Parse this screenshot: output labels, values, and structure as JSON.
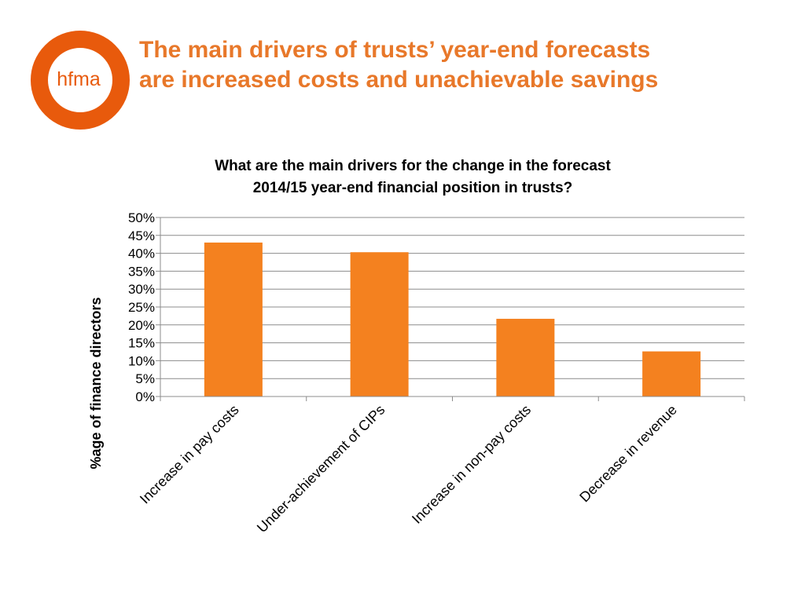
{
  "logo": {
    "text": "hfma",
    "color": "#e85a0c"
  },
  "slide": {
    "title_lines": [
      "The main drivers of trusts’ year-end forecasts",
      "are increased costs and unachievable savings"
    ],
    "title_color": "#e8782a"
  },
  "chart_data": {
    "type": "bar",
    "title_lines": [
      "What are the main drivers for the change in the forecast",
      "2014/15 year-end financial position in trusts?"
    ],
    "xlabel": "",
    "ylabel": "%age of finance directors",
    "categories": [
      "Increase in pay costs",
      "Under-achievement of CIPs",
      "Increase in non-pay costs",
      "Decrease in revenue"
    ],
    "values": [
      43,
      40.3,
      21.7,
      12.6
    ],
    "value_unit": "%",
    "ylim": [
      0,
      50
    ],
    "ytick_step": 5,
    "yticks": [
      "0%",
      "5%",
      "10%",
      "15%",
      "20%",
      "25%",
      "30%",
      "35%",
      "40%",
      "45%",
      "50%"
    ],
    "grid": true,
    "legend": "none",
    "bar_color": "#f4811f"
  }
}
